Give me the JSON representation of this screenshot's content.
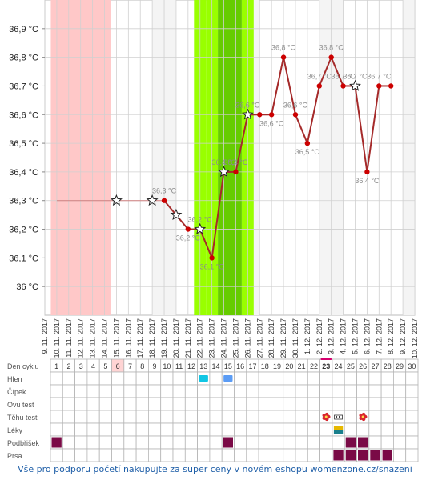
{
  "chart_data": {
    "type": "line",
    "y_unit": "°C",
    "ylim": [
      35.9,
      37.0
    ],
    "y_ticks": [
      "36,9 °C",
      "36,8 °C",
      "36,7 °C",
      "36,6 °C",
      "36,5 °C",
      "36,4 °C",
      "36,3 °C",
      "36,2 °C",
      "36,1 °C",
      "36 °C"
    ],
    "y_tick_values": [
      36.9,
      36.8,
      36.7,
      36.6,
      36.5,
      36.4,
      36.3,
      36.2,
      36.1,
      36.0
    ],
    "dates": [
      "9. 11. 2017",
      "10. 11. 2017",
      "11. 11. 2017",
      "12. 11. 2017",
      "13. 11. 2017",
      "14. 11. 2017",
      "15. 11. 2017",
      "16. 11. 2017",
      "17. 11. 2017",
      "18. 11. 2017",
      "19. 11. 2017",
      "20. 11. 2017",
      "21. 11. 2017",
      "22. 11. 2017",
      "23. 11. 2017",
      "24. 11. 2017",
      "25. 11. 2017",
      "26. 11. 2017",
      "27. 11. 2017",
      "28. 11. 2017",
      "29. 11. 2017",
      "30. 11. 2017",
      "1. 12. 2017",
      "2. 12. 2017",
      "3. 12. 2017",
      "4. 12. 2017",
      "5. 12. 2017",
      "6. 12. 2017",
      "7. 12. 2017",
      "8. 12. 2017",
      "9. 12. 2017",
      "10. 12. 2017"
    ],
    "series": [
      {
        "values": [
          null,
          36.3,
          null,
          null,
          null,
          null,
          36.3,
          null,
          null,
          36.3,
          36.3,
          36.25,
          36.2,
          36.2,
          36.1,
          36.4,
          36.4,
          36.6,
          36.6,
          36.6,
          36.8,
          36.6,
          36.5,
          36.7,
          36.8,
          36.7,
          36.7,
          36.4,
          36.7,
          36.7,
          null,
          null
        ],
        "labels": [
          "",
          "",
          "",
          "",
          "",
          "",
          "",
          "",
          "",
          "",
          "36,3 °C",
          "",
          "36,2 °C",
          "36,2 °C",
          "36,1 °C",
          "36,4 °C",
          "36,4 °C",
          "36,6 °C",
          "",
          "36,6 °C",
          "36,8 °C",
          "36,6 °C",
          "36,5 °C",
          "36,7 °C",
          "36,8 °C",
          "36,7 °C",
          "36,7 °C",
          "36,4 °C",
          "36,7 °C",
          "",
          "",
          ""
        ],
        "stars": [
          6,
          9,
          11,
          13,
          15,
          17,
          26
        ]
      }
    ],
    "menstruation_days": [
      1,
      2,
      3,
      4,
      5
    ],
    "fertile_days_light": [
      13,
      14,
      17
    ],
    "fertile_days_dark": [
      15,
      16
    ],
    "colors": {
      "menstruation": "#ffc8c8",
      "fertile_light": "#99ff00",
      "fertile_dark": "#66cc00",
      "line": "#a52a2a",
      "point": "#cc0000",
      "grid": "#d0d0d0",
      "weekend_stripe": "#f4f4f4",
      "mucus_cyan": "#11c6e4",
      "mucus_blue": "#5b9cf5",
      "marker": "#7a0a46",
      "today": "#d6006e"
    }
  },
  "cycle_table": {
    "header_label": "Den cyklu",
    "days": [
      "1",
      "2",
      "3",
      "4",
      "5",
      "6",
      "7",
      "8",
      "9",
      "10",
      "11",
      "12",
      "13",
      "14",
      "15",
      "16",
      "17",
      "18",
      "19",
      "20",
      "21",
      "22",
      "23",
      "24",
      "25",
      "26",
      "27",
      "28",
      "29",
      "30"
    ],
    "highlight_day": "6",
    "today_day": "23",
    "rows": [
      {
        "label": "Hlen",
        "cells": {
          "13": "cyan",
          "15": "blue"
        }
      },
      {
        "label": "Čípek",
        "cells": {}
      },
      {
        "label": "Ovu test",
        "cells": {}
      },
      {
        "label": "Těhu test",
        "cells": {
          "23": "flower",
          "24": "test",
          "26": "flower"
        }
      },
      {
        "label": "Léky",
        "cells": {
          "24": "pill"
        }
      },
      {
        "label": "Podbřišek",
        "cells": {
          "1": "box",
          "15": "box",
          "25": "box",
          "26": "box"
        }
      },
      {
        "label": "Prsa",
        "cells": {
          "24": "box",
          "25": "box",
          "26": "box",
          "27": "box",
          "28": "box"
        }
      }
    ]
  },
  "footer": {
    "text": "Vše pro podporu početí nakupujte za super ceny v novém eshopu womenzone.cz/snazeni"
  }
}
